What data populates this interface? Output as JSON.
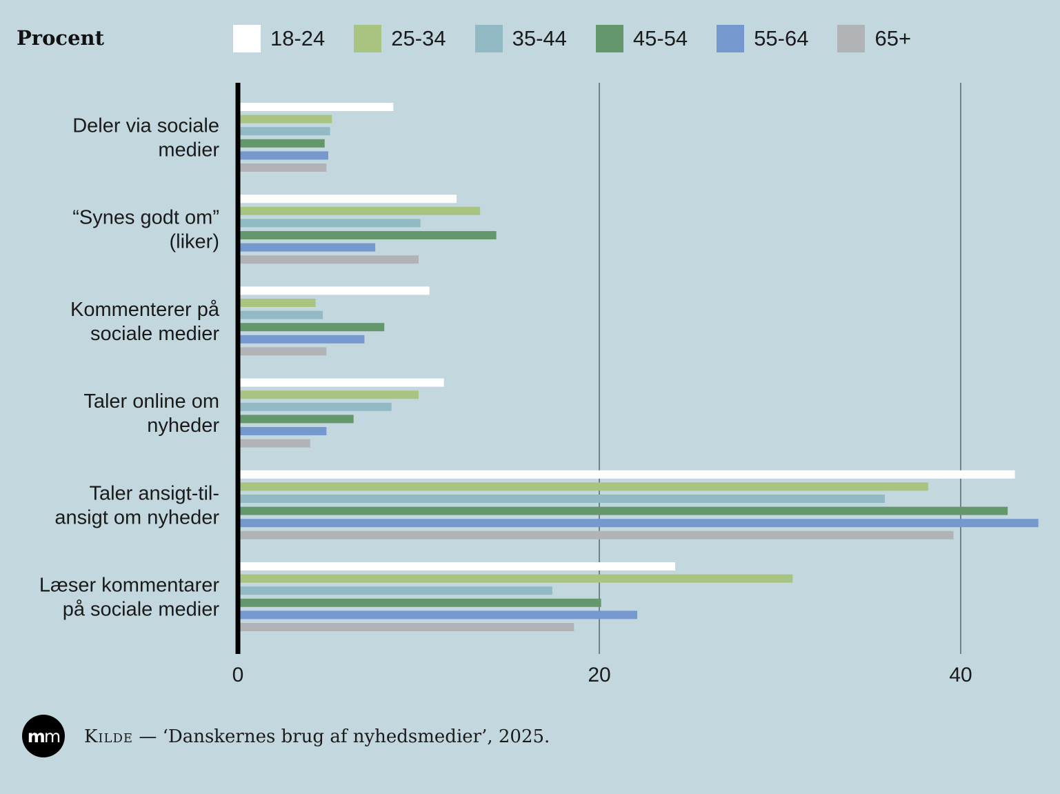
{
  "chart_data": {
    "type": "bar",
    "orientation": "horizontal",
    "ylabel": "Procent",
    "categories": [
      [
        "Deler via sociale",
        "medier"
      ],
      [
        "“Synes godt om”",
        "(liker)"
      ],
      [
        "Kommenterer på",
        "sociale medier"
      ],
      [
        "Taler online om",
        "nyheder"
      ],
      [
        "Taler ansigt-til-",
        "ansigt om nyheder"
      ],
      [
        "Læser kommentarer",
        "på sociale medier"
      ]
    ],
    "series": [
      {
        "name": "18-24",
        "color": "#ffffff",
        "values": [
          8.6,
          12.1,
          10.6,
          11.4,
          43.0,
          24.2
        ]
      },
      {
        "name": "25-34",
        "color": "#a8c480",
        "values": [
          5.2,
          13.4,
          4.3,
          10.0,
          38.2,
          30.7
        ]
      },
      {
        "name": "35-44",
        "color": "#92bac4",
        "values": [
          5.1,
          10.1,
          4.7,
          8.5,
          35.8,
          17.4
        ]
      },
      {
        "name": "45-54",
        "color": "#64976b",
        "values": [
          4.8,
          14.3,
          8.1,
          6.4,
          42.6,
          20.1
        ]
      },
      {
        "name": "55-64",
        "color": "#7598cf",
        "values": [
          5.0,
          7.6,
          7.0,
          4.9,
          44.3,
          22.1
        ]
      },
      {
        "name": "65+",
        "color": "#b2b3b6",
        "values": [
          4.9,
          10.0,
          4.9,
          4.0,
          39.6,
          18.6
        ]
      }
    ],
    "xlim": [
      0,
      44.3
    ],
    "xticks": [
      0,
      20,
      40
    ],
    "grid": "vertical"
  },
  "source": {
    "label": "Kilde",
    "text": " — ‘Danskernes brug af nyhedsmedier’, 2025."
  },
  "logo": {
    "text_bold": "m",
    "text_light": "m"
  }
}
